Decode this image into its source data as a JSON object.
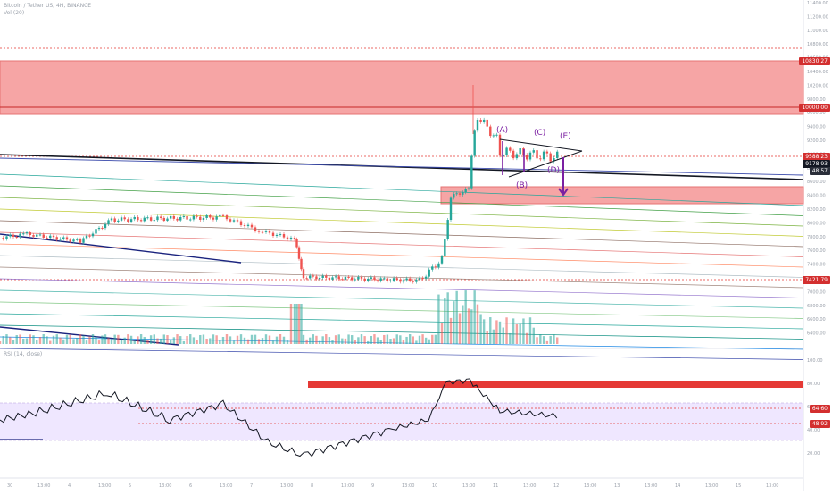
{
  "header": {
    "symbol_line": "Bitcoin / Tether US, 4H, BINANCE",
    "indicator_line": "Vol (20)",
    "rsi_line": "RSI (14, close)"
  },
  "price_tags": {
    "top_red": "10830.27",
    "ten_k": "10000.00",
    "upper_red": "9588.23",
    "current": "9178.93",
    "countdown": "48:57",
    "lower_red": "7421.79"
  },
  "rsi_tags": {
    "upper": "64.60",
    "lower": "48.92"
  },
  "wave_labels": [
    "(A)",
    "(B)",
    "(C)",
    "(D)",
    "(E)"
  ],
  "colors": {
    "up": "#26a69a",
    "down": "#ef5350",
    "zone": "#f4a8a8",
    "zone_border": "#e53935",
    "rsi_line": "#131722",
    "rsi_band": "#efe7ff",
    "wave": "#7b1fa2",
    "trendline": "#1a237e"
  },
  "chart_data": {
    "type": "candlestick",
    "price_axis_ticks": [
      "11400.00",
      "11200.00",
      "11000.00",
      "10800.00",
      "10600.00",
      "10400.00",
      "10200.00",
      "9800.00",
      "9600.00",
      "9400.00",
      "9200.00",
      "9000.00",
      "8800.00",
      "8600.00",
      "8400.00",
      "8200.00",
      "8000.00",
      "7800.00",
      "7600.00",
      "7400.00",
      "7200.00",
      "7000.00",
      "6800.00",
      "6600.00",
      "6400.00"
    ],
    "rsi_axis_ticks": [
      "100.00",
      "80.00",
      "60.00",
      "40.00",
      "20.00"
    ],
    "time_ticks": [
      "30",
      "13:00",
      "4",
      "13:00",
      "5",
      "13:00",
      "6",
      "13:00",
      "7",
      "13:00",
      "8",
      "13:00",
      "9",
      "13:00",
      "10",
      "13:00",
      "11",
      "13:00",
      "12",
      "13:00",
      "13",
      "13:00",
      "14",
      "13:00",
      "15",
      "13:00"
    ],
    "price_range": [
      6400,
      11400
    ],
    "rsi_range": [
      0,
      100
    ]
  }
}
